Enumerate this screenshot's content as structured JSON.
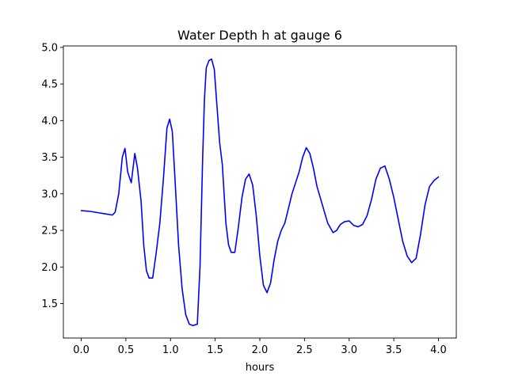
{
  "chart_data": {
    "type": "line",
    "title": "Water Depth h at gauge 6",
    "xlabel": "hours",
    "ylabel": "",
    "xlim": [
      -0.2,
      4.2
    ],
    "ylim": [
      1.03,
      5.02
    ],
    "xticks": [
      "0.0",
      "0.5",
      "1.0",
      "1.5",
      "2.0",
      "2.5",
      "3.0",
      "3.5",
      "4.0"
    ],
    "yticks": [
      "1.5",
      "2.0",
      "2.5",
      "3.0",
      "3.5",
      "4.0",
      "4.5",
      "5.0"
    ],
    "grid": false,
    "series": [
      {
        "color": "#0000ff",
        "x": [
          0.0,
          0.1,
          0.2,
          0.3,
          0.35,
          0.38,
          0.42,
          0.46,
          0.49,
          0.52,
          0.56,
          0.6,
          0.63,
          0.67,
          0.7,
          0.73,
          0.76,
          0.8,
          0.84,
          0.88,
          0.92,
          0.96,
          0.99,
          1.02,
          1.05,
          1.09,
          1.13,
          1.17,
          1.21,
          1.25,
          1.3,
          1.33,
          1.36,
          1.38,
          1.4,
          1.43,
          1.46,
          1.49,
          1.52,
          1.55,
          1.58,
          1.62,
          1.65,
          1.68,
          1.72,
          1.76,
          1.8,
          1.84,
          1.88,
          1.92,
          1.96,
          2.0,
          2.04,
          2.08,
          2.12,
          2.16,
          2.2,
          2.24,
          2.28,
          2.32,
          2.36,
          2.4,
          2.44,
          2.48,
          2.52,
          2.56,
          2.6,
          2.64,
          2.7,
          2.76,
          2.82,
          2.86,
          2.9,
          2.95,
          3.0,
          3.05,
          3.1,
          3.15,
          3.2,
          3.25,
          3.3,
          3.35,
          3.4,
          3.45,
          3.5,
          3.55,
          3.6,
          3.65,
          3.7,
          3.75,
          3.8,
          3.85,
          3.9,
          3.95,
          4.0
        ],
        "values": [
          2.77,
          2.76,
          2.74,
          2.72,
          2.71,
          2.75,
          3.0,
          3.5,
          3.62,
          3.3,
          3.15,
          3.55,
          3.35,
          2.9,
          2.3,
          1.95,
          1.85,
          1.85,
          2.2,
          2.6,
          3.2,
          3.9,
          4.02,
          3.85,
          3.2,
          2.3,
          1.7,
          1.35,
          1.22,
          1.2,
          1.22,
          2.0,
          3.5,
          4.3,
          4.72,
          4.82,
          4.84,
          4.7,
          4.2,
          3.7,
          3.4,
          2.6,
          2.3,
          2.2,
          2.2,
          2.55,
          2.95,
          3.2,
          3.27,
          3.12,
          2.7,
          2.15,
          1.75,
          1.65,
          1.78,
          2.1,
          2.35,
          2.5,
          2.6,
          2.8,
          3.0,
          3.15,
          3.3,
          3.5,
          3.63,
          3.55,
          3.35,
          3.1,
          2.85,
          2.6,
          2.47,
          2.5,
          2.58,
          2.62,
          2.63,
          2.57,
          2.55,
          2.58,
          2.7,
          2.92,
          3.2,
          3.35,
          3.38,
          3.2,
          2.95,
          2.65,
          2.35,
          2.15,
          2.06,
          2.12,
          2.45,
          2.85,
          3.1,
          3.18,
          3.23
        ]
      }
    ]
  }
}
